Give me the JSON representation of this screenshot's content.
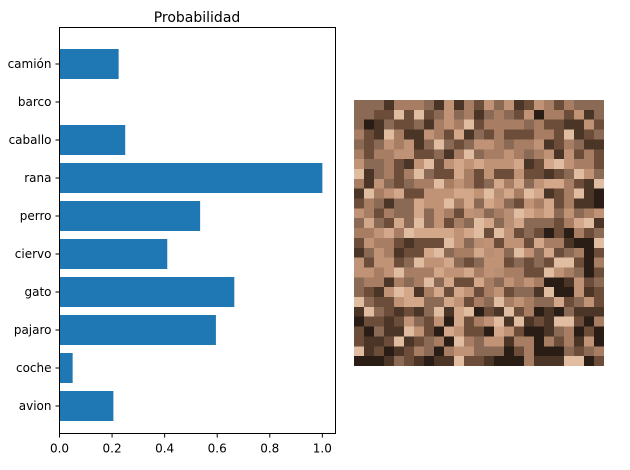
{
  "chart_data": {
    "type": "bar",
    "orientation": "horizontal",
    "title": "Probabilidad",
    "xlabel": "",
    "ylabel": "",
    "categories": [
      "camión",
      "barco",
      "caballo",
      "rana",
      "perro",
      "ciervo",
      "gato",
      "pajaro",
      "coche",
      "avion"
    ],
    "values": [
      0.225,
      0.0,
      0.25,
      1.0,
      0.535,
      0.41,
      0.665,
      0.595,
      0.05,
      0.205
    ],
    "xlim": [
      0,
      1.05
    ],
    "xticks": [
      "0.0",
      "0.2",
      "0.4",
      "0.6",
      "0.8",
      "1.0"
    ],
    "grid": false,
    "bar_color": "#1f77b4"
  },
  "image_panel": {
    "description_name": "input-image",
    "palette": [
      "#2a1d15",
      "#4a3526",
      "#6b4d3a",
      "#8a6a55",
      "#a77e63",
      "#c09377",
      "#d3a78a",
      "#b98f73",
      "#7a5a45",
      "#e0bca1"
    ]
  }
}
